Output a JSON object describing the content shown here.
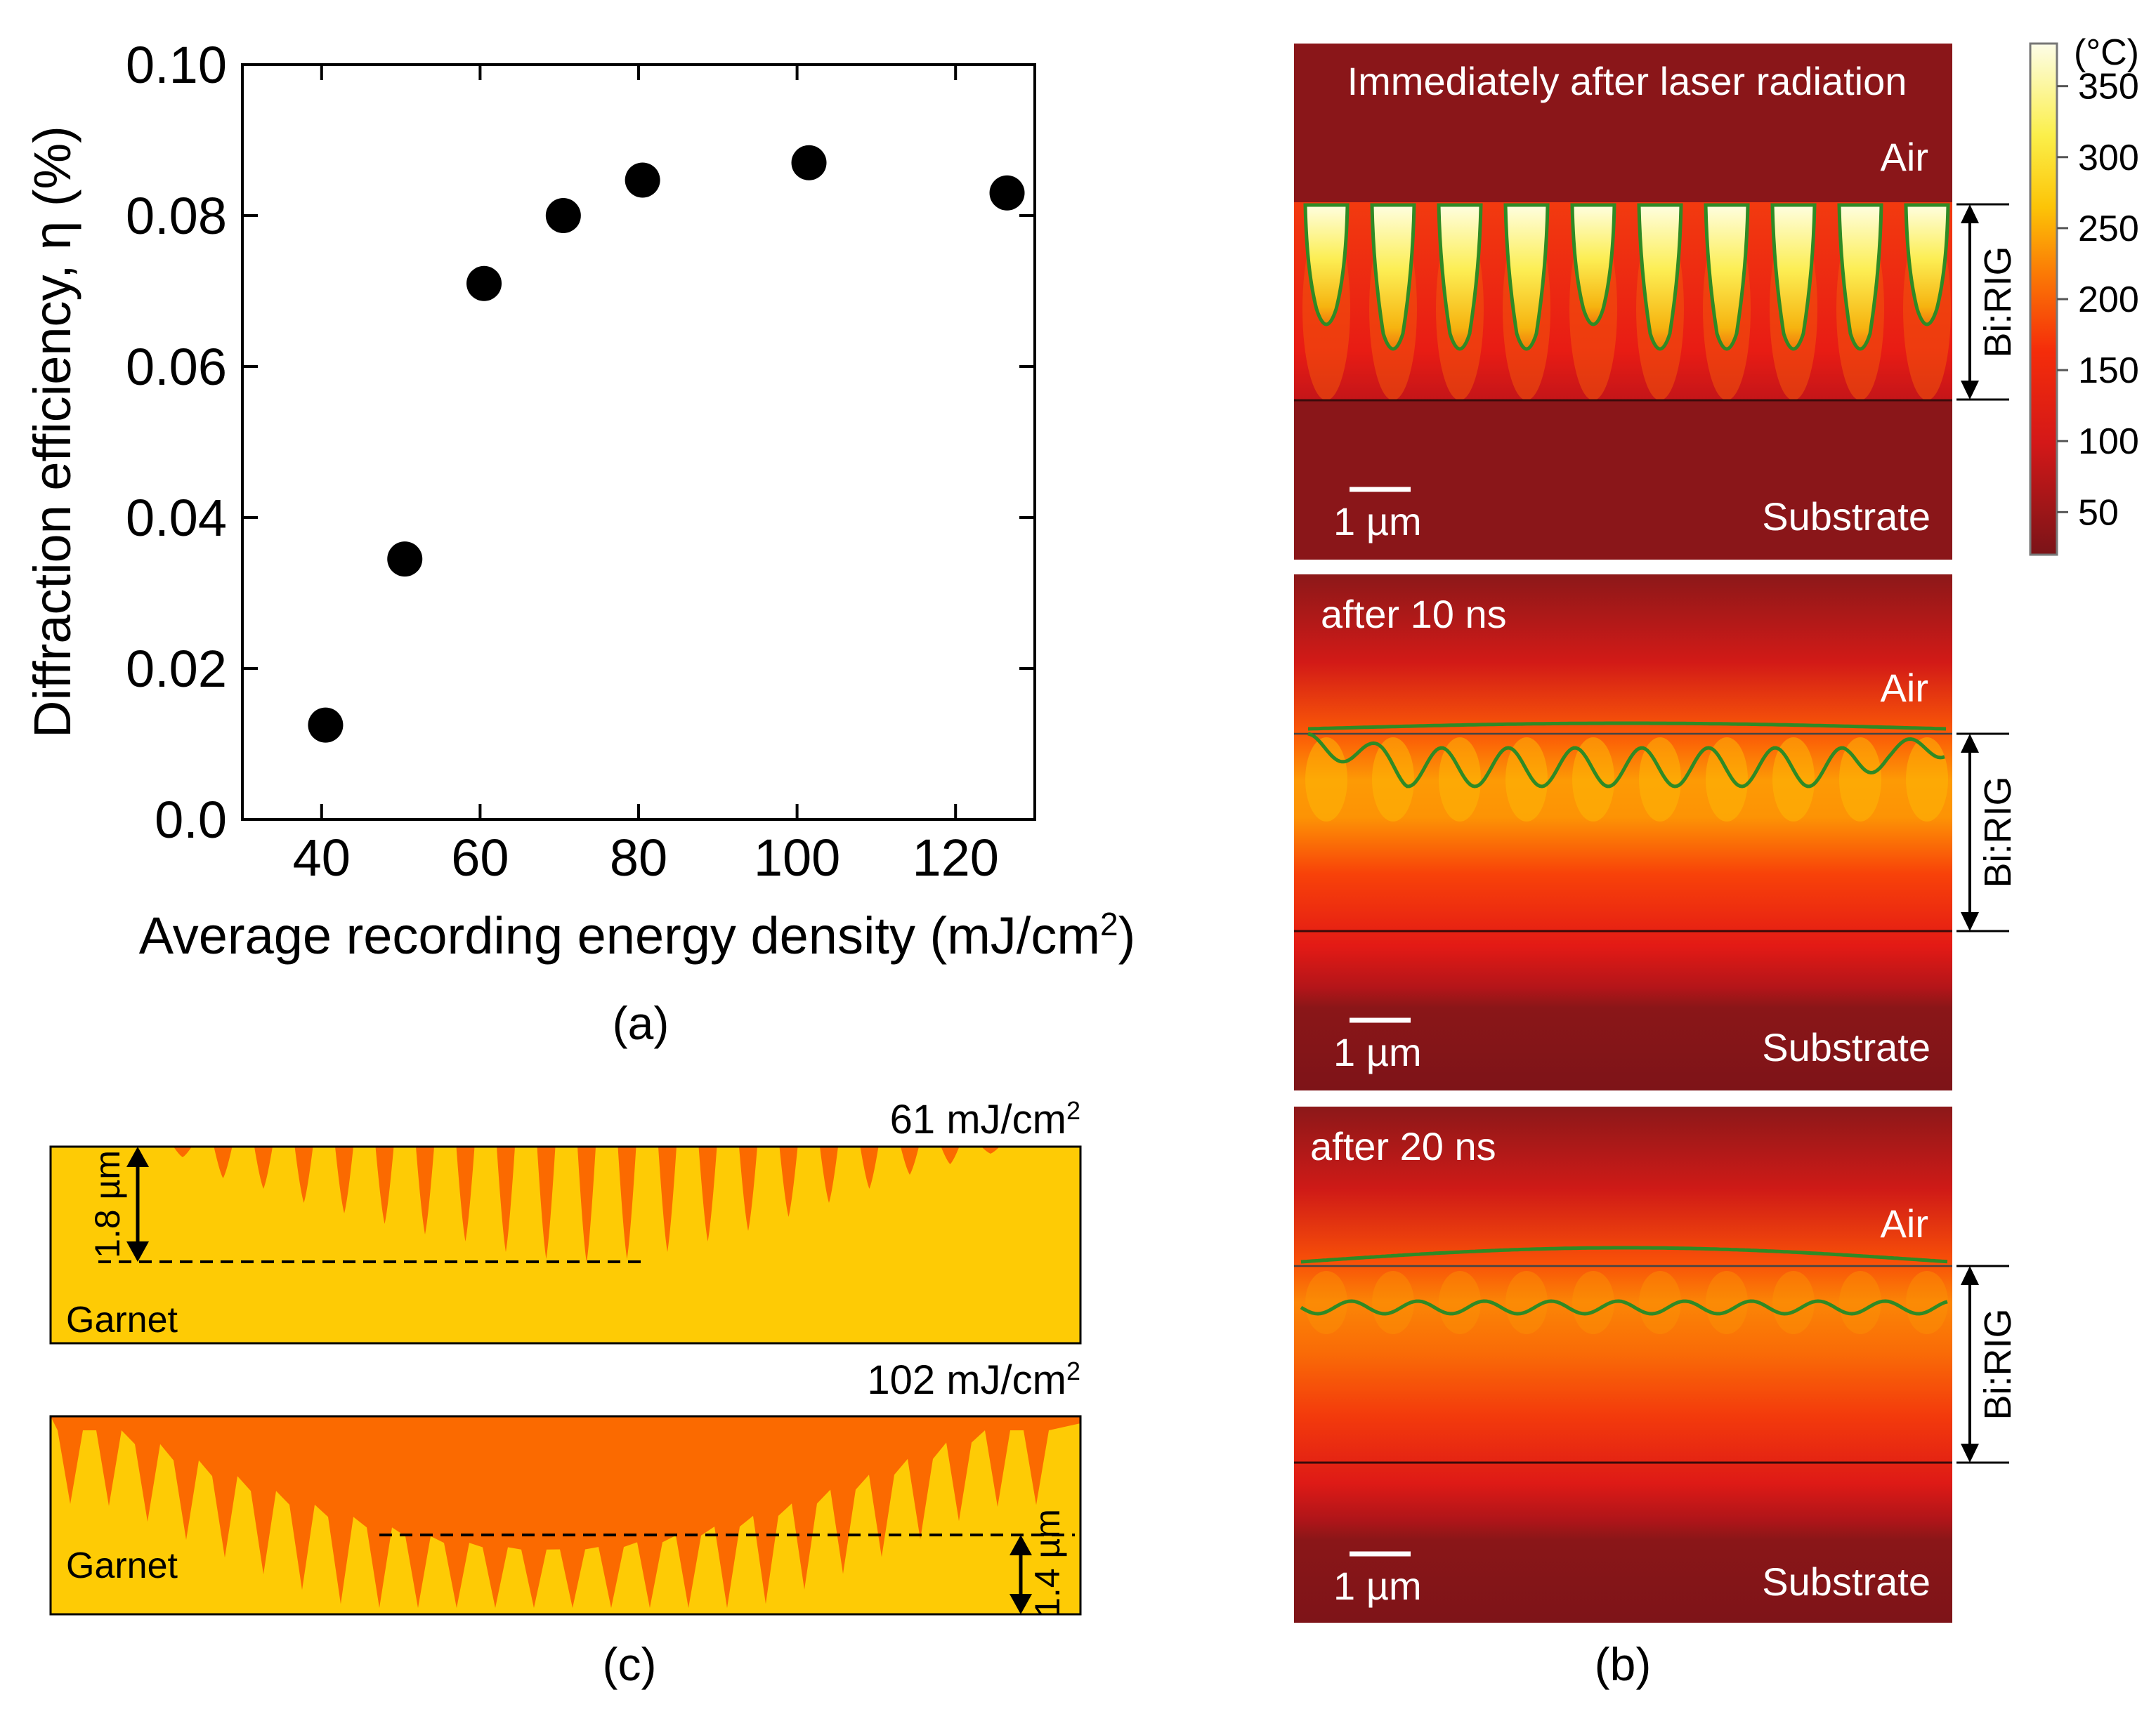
{
  "chart_data": [
    {
      "type": "scatter",
      "panel_label": "(a)",
      "title": "",
      "xlabel": "Average recording energy density (mJ/cm",
      "xlabel_sup": "2",
      "xlabel_end": ")",
      "ylabel": "Diffraction efficiency, η (%)",
      "xlim": [
        30,
        130
      ],
      "ylim": [
        0,
        0.1
      ],
      "xticks": [
        40,
        60,
        80,
        100,
        120
      ],
      "yticks": [
        0.0,
        0.02,
        0.04,
        0.06,
        0.08,
        0.1
      ],
      "ytick_labels": [
        "0.0",
        "0.02",
        "0.04",
        "0.06",
        "0.08",
        "0.10"
      ],
      "points": [
        {
          "x": 40.5,
          "y": 0.0125
        },
        {
          "x": 50.5,
          "y": 0.0345
        },
        {
          "x": 60.5,
          "y": 0.071
        },
        {
          "x": 70.5,
          "y": 0.08
        },
        {
          "x": 80.5,
          "y": 0.0847
        },
        {
          "x": 101.5,
          "y": 0.087
        },
        {
          "x": 126.5,
          "y": 0.083
        }
      ]
    },
    {
      "type": "heatmap",
      "panel_label": "(b)",
      "colorbar": {
        "unit": "(°C)",
        "ticks": [
          350,
          300,
          250,
          200,
          150,
          100,
          50
        ],
        "range": [
          20,
          380
        ]
      },
      "layer_label": "Bi:RIG",
      "top_label": "Air",
      "bottom_label": "Substrate",
      "scale_bar": "1 µm",
      "frames": [
        {
          "caption": "Immediately after laser radiation",
          "pattern": "separate"
        },
        {
          "caption": "after 10 ns",
          "pattern": "wavy"
        },
        {
          "caption": "after 20 ns",
          "pattern": "flat"
        }
      ]
    },
    {
      "type": "profile",
      "panel_label": "(c)",
      "material_label": "Garnet",
      "profiles": [
        {
          "energy_value": "61 mJ/cm",
          "energy_sup": "2",
          "depth_label": "1.8 µm"
        },
        {
          "energy_value": "102 mJ/cm",
          "energy_sup": "2",
          "depth_label": "1.4 µm"
        }
      ]
    }
  ],
  "colors": {
    "marker": "#000000",
    "air": "#8a1619",
    "hot": "#ffffd0",
    "garnet": "#fecb05",
    "damaged": "#fb6a00",
    "contour": "#2f8a25"
  }
}
